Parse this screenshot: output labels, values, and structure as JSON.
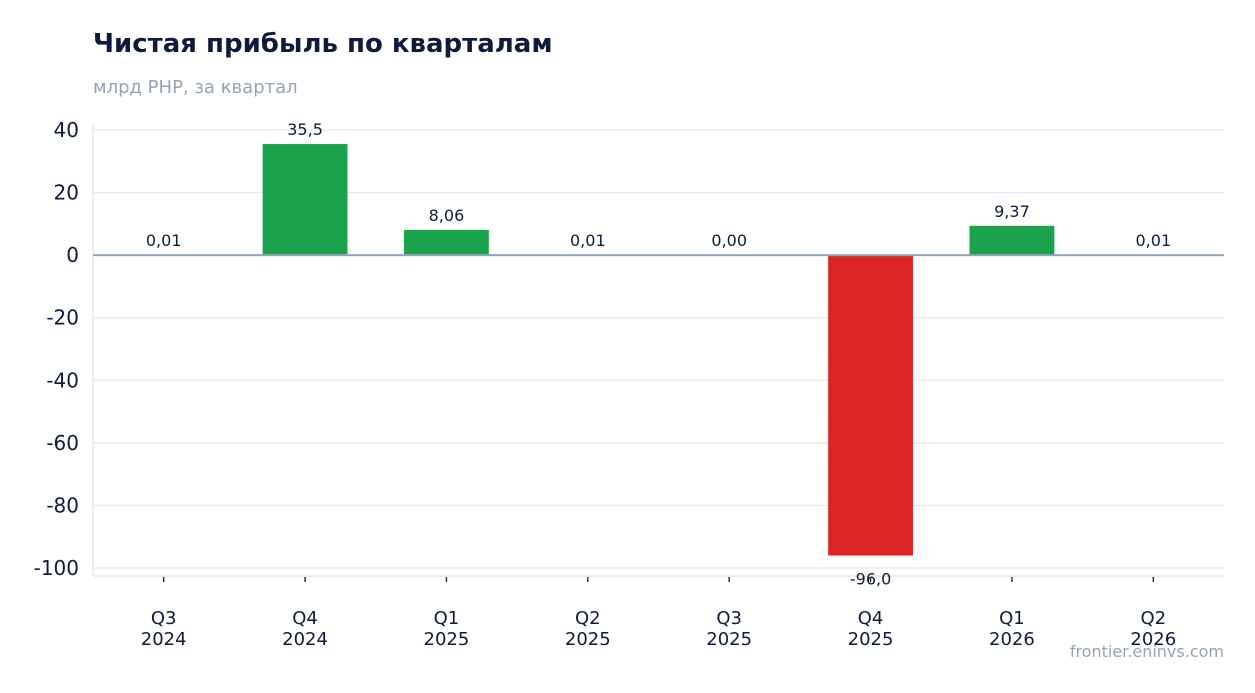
{
  "header": {
    "title": "Чистая прибыль по кварталам",
    "subtitle": "млрд РНР, за квартал"
  },
  "footer": {
    "watermark": "frontier.eninvs.com"
  },
  "chart_data": {
    "type": "bar",
    "title": "Чистая прибыль по кварталам",
    "subtitle": "млрд РНР, за квартал",
    "categories": [
      [
        "Q3",
        "2024"
      ],
      [
        "Q4",
        "2024"
      ],
      [
        "Q1",
        "2025"
      ],
      [
        "Q2",
        "2025"
      ],
      [
        "Q3",
        "2025"
      ],
      [
        "Q4",
        "2025"
      ],
      [
        "Q1",
        "2026"
      ],
      [
        "Q2",
        "2026"
      ]
    ],
    "values": [
      0.01,
      35.5,
      8.06,
      0.01,
      0.0,
      -96.0,
      9.37,
      0.01
    ],
    "value_labels": [
      "0,01",
      "35,5",
      "8,06",
      "0,01",
      "0,00",
      "-96,0",
      "9,37",
      "0,01"
    ],
    "ylim": [
      -100,
      40
    ],
    "yticks": [
      40,
      20,
      0,
      -20,
      -40,
      -60,
      -80,
      -100
    ],
    "grid": true,
    "legend": "none",
    "colors": {
      "positive": "#1aa34a",
      "negative": "#dc2626",
      "zero_line": "#8fa3bf",
      "grid": "#e2e8f0",
      "text": "#0f1b3d"
    }
  }
}
